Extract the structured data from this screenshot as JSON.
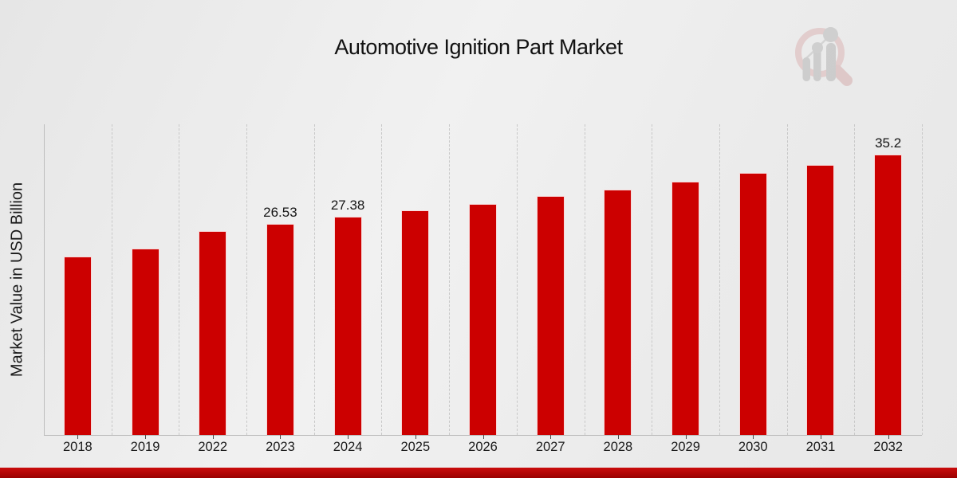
{
  "title": "Automotive Ignition Part Market",
  "y_axis_label": "Market Value in USD Billion",
  "watermark_icon": "magnifier-bar-chart-logo",
  "colors": {
    "bar": "#cc0000",
    "accent_strip": "#b30606",
    "grid": "#c8c8c8",
    "axis": "#bdbdbd",
    "text": "#1c1c1c",
    "watermark_ring": "#dbb6b6",
    "watermark_bars": "#b5b5b5"
  },
  "chart_data": {
    "type": "bar",
    "title": "Automotive Ignition Part Market",
    "xlabel": "",
    "ylabel": "Market Value in USD Billion",
    "categories": [
      "2018",
      "2019",
      "2022",
      "2023",
      "2024",
      "2025",
      "2026",
      "2027",
      "2028",
      "2029",
      "2030",
      "2031",
      "2032"
    ],
    "values": [
      22.4,
      23.4,
      25.6,
      26.53,
      27.38,
      28.2,
      29.0,
      30.0,
      30.8,
      31.8,
      32.9,
      33.9,
      35.2
    ],
    "data_labels": [
      "",
      "",
      "",
      "26.53",
      "27.38",
      "",
      "",
      "",
      "",
      "",
      "",
      "",
      "35.2"
    ],
    "ylim": [
      0,
      39
    ],
    "y_axis_ticks_shown": false,
    "grid": "vertical-dashed",
    "legend": "none",
    "bar_color": "#cc0000"
  }
}
